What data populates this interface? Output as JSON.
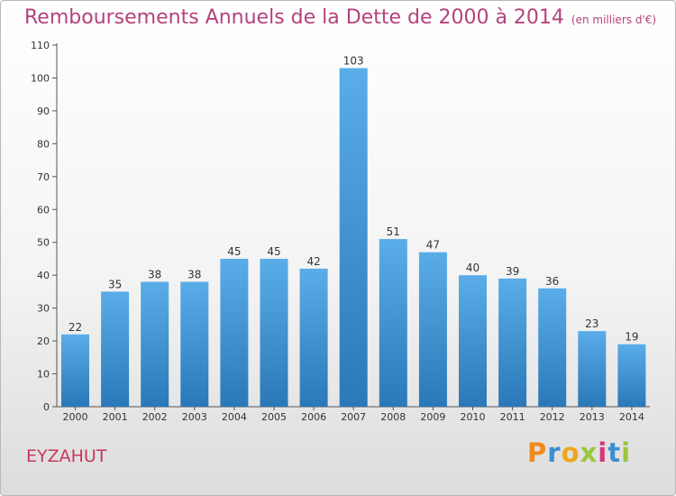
{
  "title": "Remboursements Annuels de la Dette de 2000 à 2014",
  "unit": "(en milliers d'€)",
  "commune": "EYZAHUT",
  "logo": {
    "letters": [
      "P",
      "r",
      "o",
      "x",
      "i",
      "t",
      "i"
    ],
    "colors": [
      "#f08a1c",
      "#3b8fd0",
      "#f0a51c",
      "#9bc63a",
      "#d9347a",
      "#3b8fd0",
      "#9bc63a"
    ]
  },
  "colors": {
    "bar_top": "#5aade8",
    "bar_bottom": "#2a78b8",
    "title": "#b5427c"
  },
  "chart_data": {
    "type": "bar",
    "categories": [
      "2000",
      "2001",
      "2002",
      "2003",
      "2004",
      "2005",
      "2006",
      "2007",
      "2008",
      "2009",
      "2010",
      "2011",
      "2012",
      "2013",
      "2014"
    ],
    "values": [
      22,
      35,
      38,
      38,
      45,
      45,
      42,
      103,
      51,
      47,
      40,
      39,
      36,
      23,
      19
    ],
    "ylim": [
      0,
      110
    ],
    "yticks": [
      0,
      10,
      20,
      30,
      40,
      50,
      60,
      70,
      80,
      90,
      100,
      110
    ],
    "grid": false,
    "xlabel": "",
    "ylabel": ""
  }
}
